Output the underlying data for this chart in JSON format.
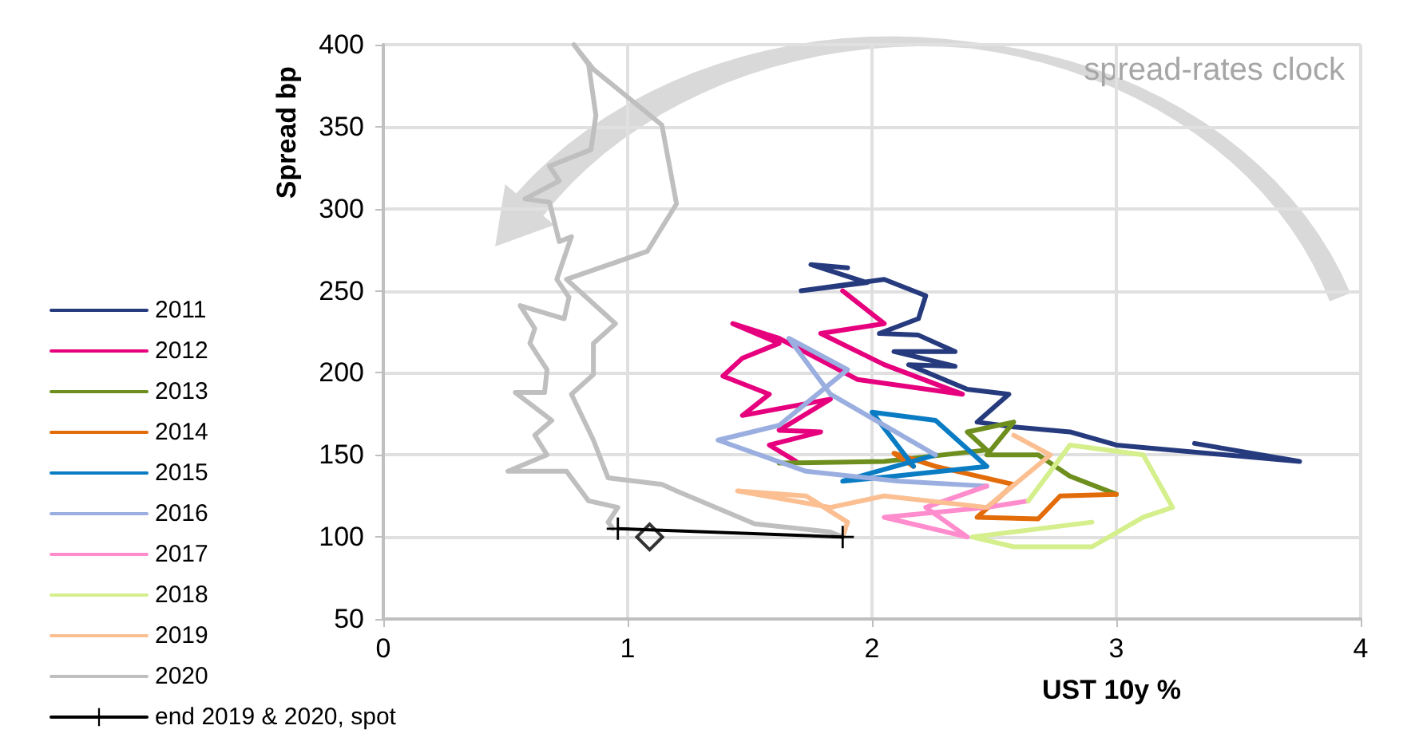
{
  "chart_data": {
    "type": "line",
    "xlabel": "UST 10y %",
    "ylabel": "Spread bp",
    "annotations": [
      "spread-rates clock"
    ],
    "xlim": [
      0,
      4
    ],
    "xticks": [
      0,
      1,
      2,
      3,
      4
    ],
    "ylim": [
      50,
      400
    ],
    "yticks": [
      50,
      100,
      150,
      200,
      250,
      300,
      350,
      400
    ],
    "grid": true,
    "legend": "bottom left",
    "marker": "none",
    "line_style": "solid",
    "series": [
      {
        "name": "2011",
        "color": "#263a7e",
        "x": [
          3.32,
          3.75,
          3.0,
          2.81,
          2.58,
          2.43,
          2.56,
          2.39,
          2.15,
          2.34,
          2.09,
          2.34,
          2.19,
          2.03,
          2.19,
          2.22,
          2.05,
          1.71,
          1.98,
          1.75,
          1.9
        ],
        "values": [
          157,
          146,
          156,
          164,
          167,
          170,
          187,
          190,
          205,
          204,
          213,
          213,
          223,
          224,
          233,
          247,
          257,
          250,
          255,
          266,
          264
        ]
      },
      {
        "name": "2012",
        "color": "#e6007e",
        "x": [
          1.88,
          2.05,
          1.79,
          2.05,
          2.37,
          1.94,
          1.62,
          1.43,
          1.62,
          1.47,
          1.39,
          1.58,
          1.47,
          1.83,
          1.62,
          1.79,
          1.58,
          1.69
        ],
        "values": [
          250,
          230,
          224,
          205,
          187,
          196,
          221,
          230,
          218,
          209,
          198,
          187,
          174,
          184,
          165,
          164,
          156,
          146
        ]
      },
      {
        "name": "2013",
        "color": "#6e8e1e",
        "x": [
          1.62,
          2.05,
          2.47,
          2.39,
          2.58,
          2.47,
          2.68,
          2.81,
          3.0
        ],
        "values": [
          145,
          146,
          153,
          164,
          170,
          150,
          150,
          137,
          126
        ]
      },
      {
        "name": "2014",
        "color": "#e36c0a",
        "x": [
          3.0,
          2.77,
          2.68,
          2.43,
          2.58,
          2.26,
          2.09,
          2.17
        ],
        "values": [
          126,
          125,
          111,
          112,
          132,
          143,
          151,
          143
        ]
      },
      {
        "name": "2015",
        "color": "#0a7cc4",
        "x": [
          2.17,
          2.0,
          2.26,
          2.47,
          2.09,
          1.88,
          2.26
        ],
        "values": [
          143,
          176,
          171,
          143,
          137,
          134,
          150
        ]
      },
      {
        "name": "2016",
        "color": "#9aaee0",
        "x": [
          2.26,
          1.83,
          1.66,
          1.9,
          1.62,
          1.37,
          1.73,
          2.11,
          2.47
        ],
        "values": [
          150,
          187,
          221,
          202,
          168,
          159,
          140,
          134,
          131
        ]
      },
      {
        "name": "2017",
        "color": "#ff8ccc",
        "x": [
          2.47,
          2.22,
          2.39,
          2.05,
          2.47,
          2.64
        ],
        "values": [
          131,
          118,
          100,
          112,
          118,
          122
        ]
      },
      {
        "name": "2018",
        "color": "#d4ef8c",
        "x": [
          2.64,
          2.81,
          3.11,
          3.23,
          3.11,
          2.9,
          2.58,
          2.41,
          2.9
        ],
        "values": [
          122,
          156,
          150,
          118,
          112,
          94,
          94,
          100,
          109
        ]
      },
      {
        "name": "2019",
        "color": "#fbbf92",
        "x": [
          2.58,
          2.73,
          2.47,
          2.05,
          1.83,
          1.45,
          1.73,
          1.9,
          1.88
        ],
        "values": [
          162,
          150,
          118,
          125,
          118,
          128,
          125,
          109,
          100
        ]
      },
      {
        "name": "2020",
        "color": "#bfbfbf",
        "x": [
          1.88,
          1.83,
          1.52,
          1.2,
          1.14,
          0.92,
          0.86,
          0.77,
          0.86,
          0.86,
          0.95,
          0.75,
          1.08,
          1.2,
          1.14,
          0.86,
          0.78,
          0.84,
          0.87,
          0.85,
          0.68,
          0.72,
          0.58,
          0.68,
          0.72,
          0.77,
          0.71,
          0.76,
          0.74,
          0.56,
          0.62,
          0.6,
          0.67,
          0.66,
          0.54,
          0.69,
          0.62,
          0.67,
          0.51,
          0.75,
          0.84,
          0.96,
          0.92,
          0.94
        ],
        "values": [
          100,
          103,
          108,
          128,
          132,
          136,
          159,
          187,
          199,
          218,
          230,
          257,
          274,
          303,
          351,
          385,
          400,
          388,
          357,
          336,
          326,
          317,
          306,
          304,
          280,
          283,
          257,
          246,
          233,
          241,
          227,
          218,
          202,
          188,
          188,
          171,
          162,
          150,
          140,
          140,
          122,
          118,
          109,
          105
        ]
      },
      {
        "name": "end 2019 & 2020, spot",
        "color": "#000000",
        "marker": "cross",
        "x": [
          1.88,
          0.96
        ],
        "values": [
          100,
          105
        ]
      },
      {
        "type": "scatter",
        "color": "#000000",
        "marker": "diamond",
        "x": [
          1.09
        ],
        "values": [
          100
        ]
      }
    ]
  }
}
